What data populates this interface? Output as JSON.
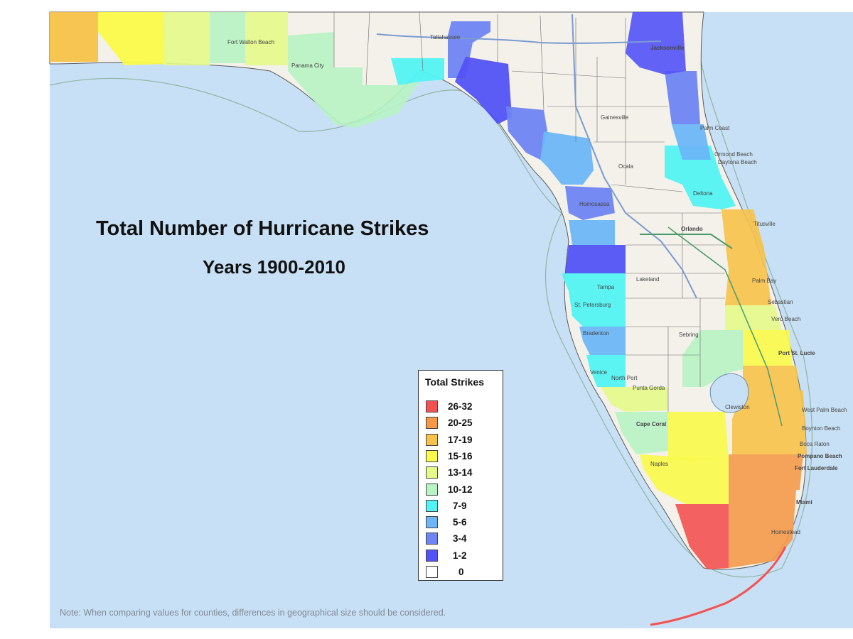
{
  "title": "Total Number of Hurricane Strikes",
  "subtitle": "Years 1900-2010",
  "note": "Note: When comparing values for counties, differences in geographical size should be considered.",
  "legend": {
    "title": "Total Strikes",
    "items": [
      {
        "label": "26-32",
        "color": "#f35252"
      },
      {
        "label": "20-25",
        "color": "#f59a4a"
      },
      {
        "label": "17-19",
        "color": "#f7c24a"
      },
      {
        "label": "15-16",
        "color": "#fafa4a"
      },
      {
        "label": "13-14",
        "color": "#e4fa8a"
      },
      {
        "label": "10-12",
        "color": "#b7f3c3"
      },
      {
        "label": "7-9",
        "color": "#52f3f3"
      },
      {
        "label": "5-6",
        "color": "#6cb6f7"
      },
      {
        "label": "3-4",
        "color": "#6e84f3"
      },
      {
        "label": "1-2",
        "color": "#5252f7"
      },
      {
        "label": "0",
        "color": "#ffffff"
      }
    ]
  },
  "map_labels": {
    "jacksonville": "Jacksonville",
    "tallahassee": "Tallahassee",
    "gainesville": "Gainesville",
    "palm_coast": "Palm Coast",
    "ormond_beach": "Ormond Beach",
    "daytona_beach": "Daytona Beach",
    "ocala": "Ocala",
    "deltona": "Deltona",
    "orlando": "Orlando",
    "titusville": "Titusville",
    "palm_bay": "Palm Bay",
    "sebastian": "Sebastian",
    "vero_beach": "Vero Beach",
    "port_st_lucie": "Port St. Lucie",
    "lakeland": "Lakeland",
    "tampa": "Tampa",
    "st_petersburg": "St. Petersburg",
    "bradenton": "Bradenton",
    "sebring": "Sebring",
    "venice": "Venice",
    "north_port": "North Port",
    "punta_gorda": "Punta Gorda",
    "cape_coral": "Cape Coral",
    "naples": "Naples",
    "clewiston": "Clewiston",
    "west_palm_beach": "West Palm Beach",
    "boynton_beach": "Boynton Beach",
    "boca_raton": "Boca Raton",
    "pompano_beach": "Pompano Beach",
    "fort_lauderdale": "Fort Lauderdale",
    "miami": "Miami",
    "homestead": "Homestead",
    "fort_walton_beach": "Fort Walton Beach",
    "panama_city": "Panama City",
    "hernando": "Homosassa"
  },
  "colors": {
    "water": "#c8e0f5",
    "land_unshaded": "#f4f1ea",
    "county_border": "#6a6a6a"
  }
}
